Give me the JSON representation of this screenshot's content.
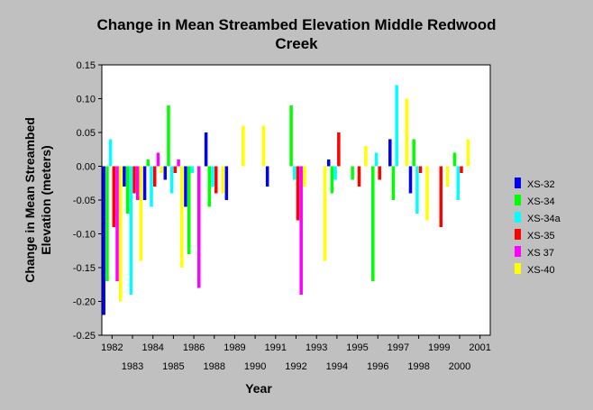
{
  "chart_data": {
    "type": "bar",
    "title": "Change in Mean Streambed Elevation Middle Redwood Creek",
    "title_lines": [
      "Change in Mean Streambed Elevation Middle Redwood",
      "Creek"
    ],
    "xlabel": "Year",
    "ylabel": "Change in Mean Streambed Elevation (meters)",
    "ylabel_lines": [
      "Change in Mean Streambed",
      "Elevation (meters)"
    ],
    "ylim": [
      -0.25,
      0.15
    ],
    "yticks": [
      "0.15",
      "0.10",
      "0.05",
      "0.00",
      "-0.05",
      "-0.10",
      "-0.15",
      "-0.20",
      "-0.25"
    ],
    "ytick_values": [
      0.15,
      0.1,
      0.05,
      0.0,
      -0.05,
      -0.1,
      -0.15,
      -0.2,
      -0.25
    ],
    "categories": [
      "1982",
      "1983",
      "1984",
      "1985",
      "1986",
      "1988",
      "1989",
      "1990",
      "1991",
      "1992",
      "1993",
      "1994",
      "1995",
      "1996",
      "1997",
      "1998",
      "1999",
      "2000",
      "2001"
    ],
    "category_label_rows": [
      0,
      1,
      0,
      1,
      0,
      1,
      0,
      1,
      0,
      1,
      0,
      1,
      0,
      1,
      0,
      1,
      0,
      1,
      0
    ],
    "grid": false,
    "legend_position": "right",
    "series": [
      {
        "name": "XS-32",
        "color": "#0000ff",
        "values": [
          -0.22,
          -0.03,
          -0.05,
          -0.02,
          -0.06,
          0.05,
          -0.05,
          null,
          -0.03,
          null,
          null,
          0.01,
          null,
          null,
          0.04,
          -0.04,
          null,
          null,
          null
        ]
      },
      {
        "name": "XS-34",
        "color": "#00ff00",
        "values": [
          -0.17,
          -0.07,
          0.01,
          0.09,
          -0.13,
          -0.06,
          null,
          null,
          null,
          0.09,
          null,
          -0.04,
          -0.02,
          -0.17,
          -0.05,
          0.04,
          null,
          0.02,
          null
        ]
      },
      {
        "name": "XS-34a",
        "color": "#00ffff",
        "values": [
          0.04,
          -0.19,
          -0.06,
          -0.04,
          -0.01,
          -0.03,
          null,
          null,
          null,
          -0.02,
          null,
          -0.02,
          null,
          0.02,
          0.12,
          -0.07,
          null,
          -0.05,
          null
        ]
      },
      {
        "name": "XS-35",
        "color": "#ff0000",
        "values": [
          -0.09,
          -0.04,
          -0.03,
          -0.01,
          null,
          -0.04,
          null,
          null,
          null,
          -0.08,
          null,
          0.05,
          -0.03,
          -0.02,
          null,
          -0.01,
          -0.09,
          -0.01,
          null
        ]
      },
      {
        "name": "XS 37",
        "color": "#ff00ff",
        "values": [
          -0.17,
          -0.05,
          0.02,
          0.01,
          -0.18,
          null,
          null,
          null,
          null,
          -0.19,
          null,
          null,
          null,
          null,
          null,
          null,
          null,
          null,
          null
        ]
      },
      {
        "name": "XS-40",
        "color": "#ffff00",
        "values": [
          -0.2,
          -0.14,
          -0.01,
          -0.15,
          null,
          -0.04,
          0.06,
          0.06,
          null,
          -0.03,
          -0.14,
          null,
          0.03,
          null,
          0.1,
          -0.08,
          -0.03,
          0.04,
          null
        ]
      }
    ]
  }
}
